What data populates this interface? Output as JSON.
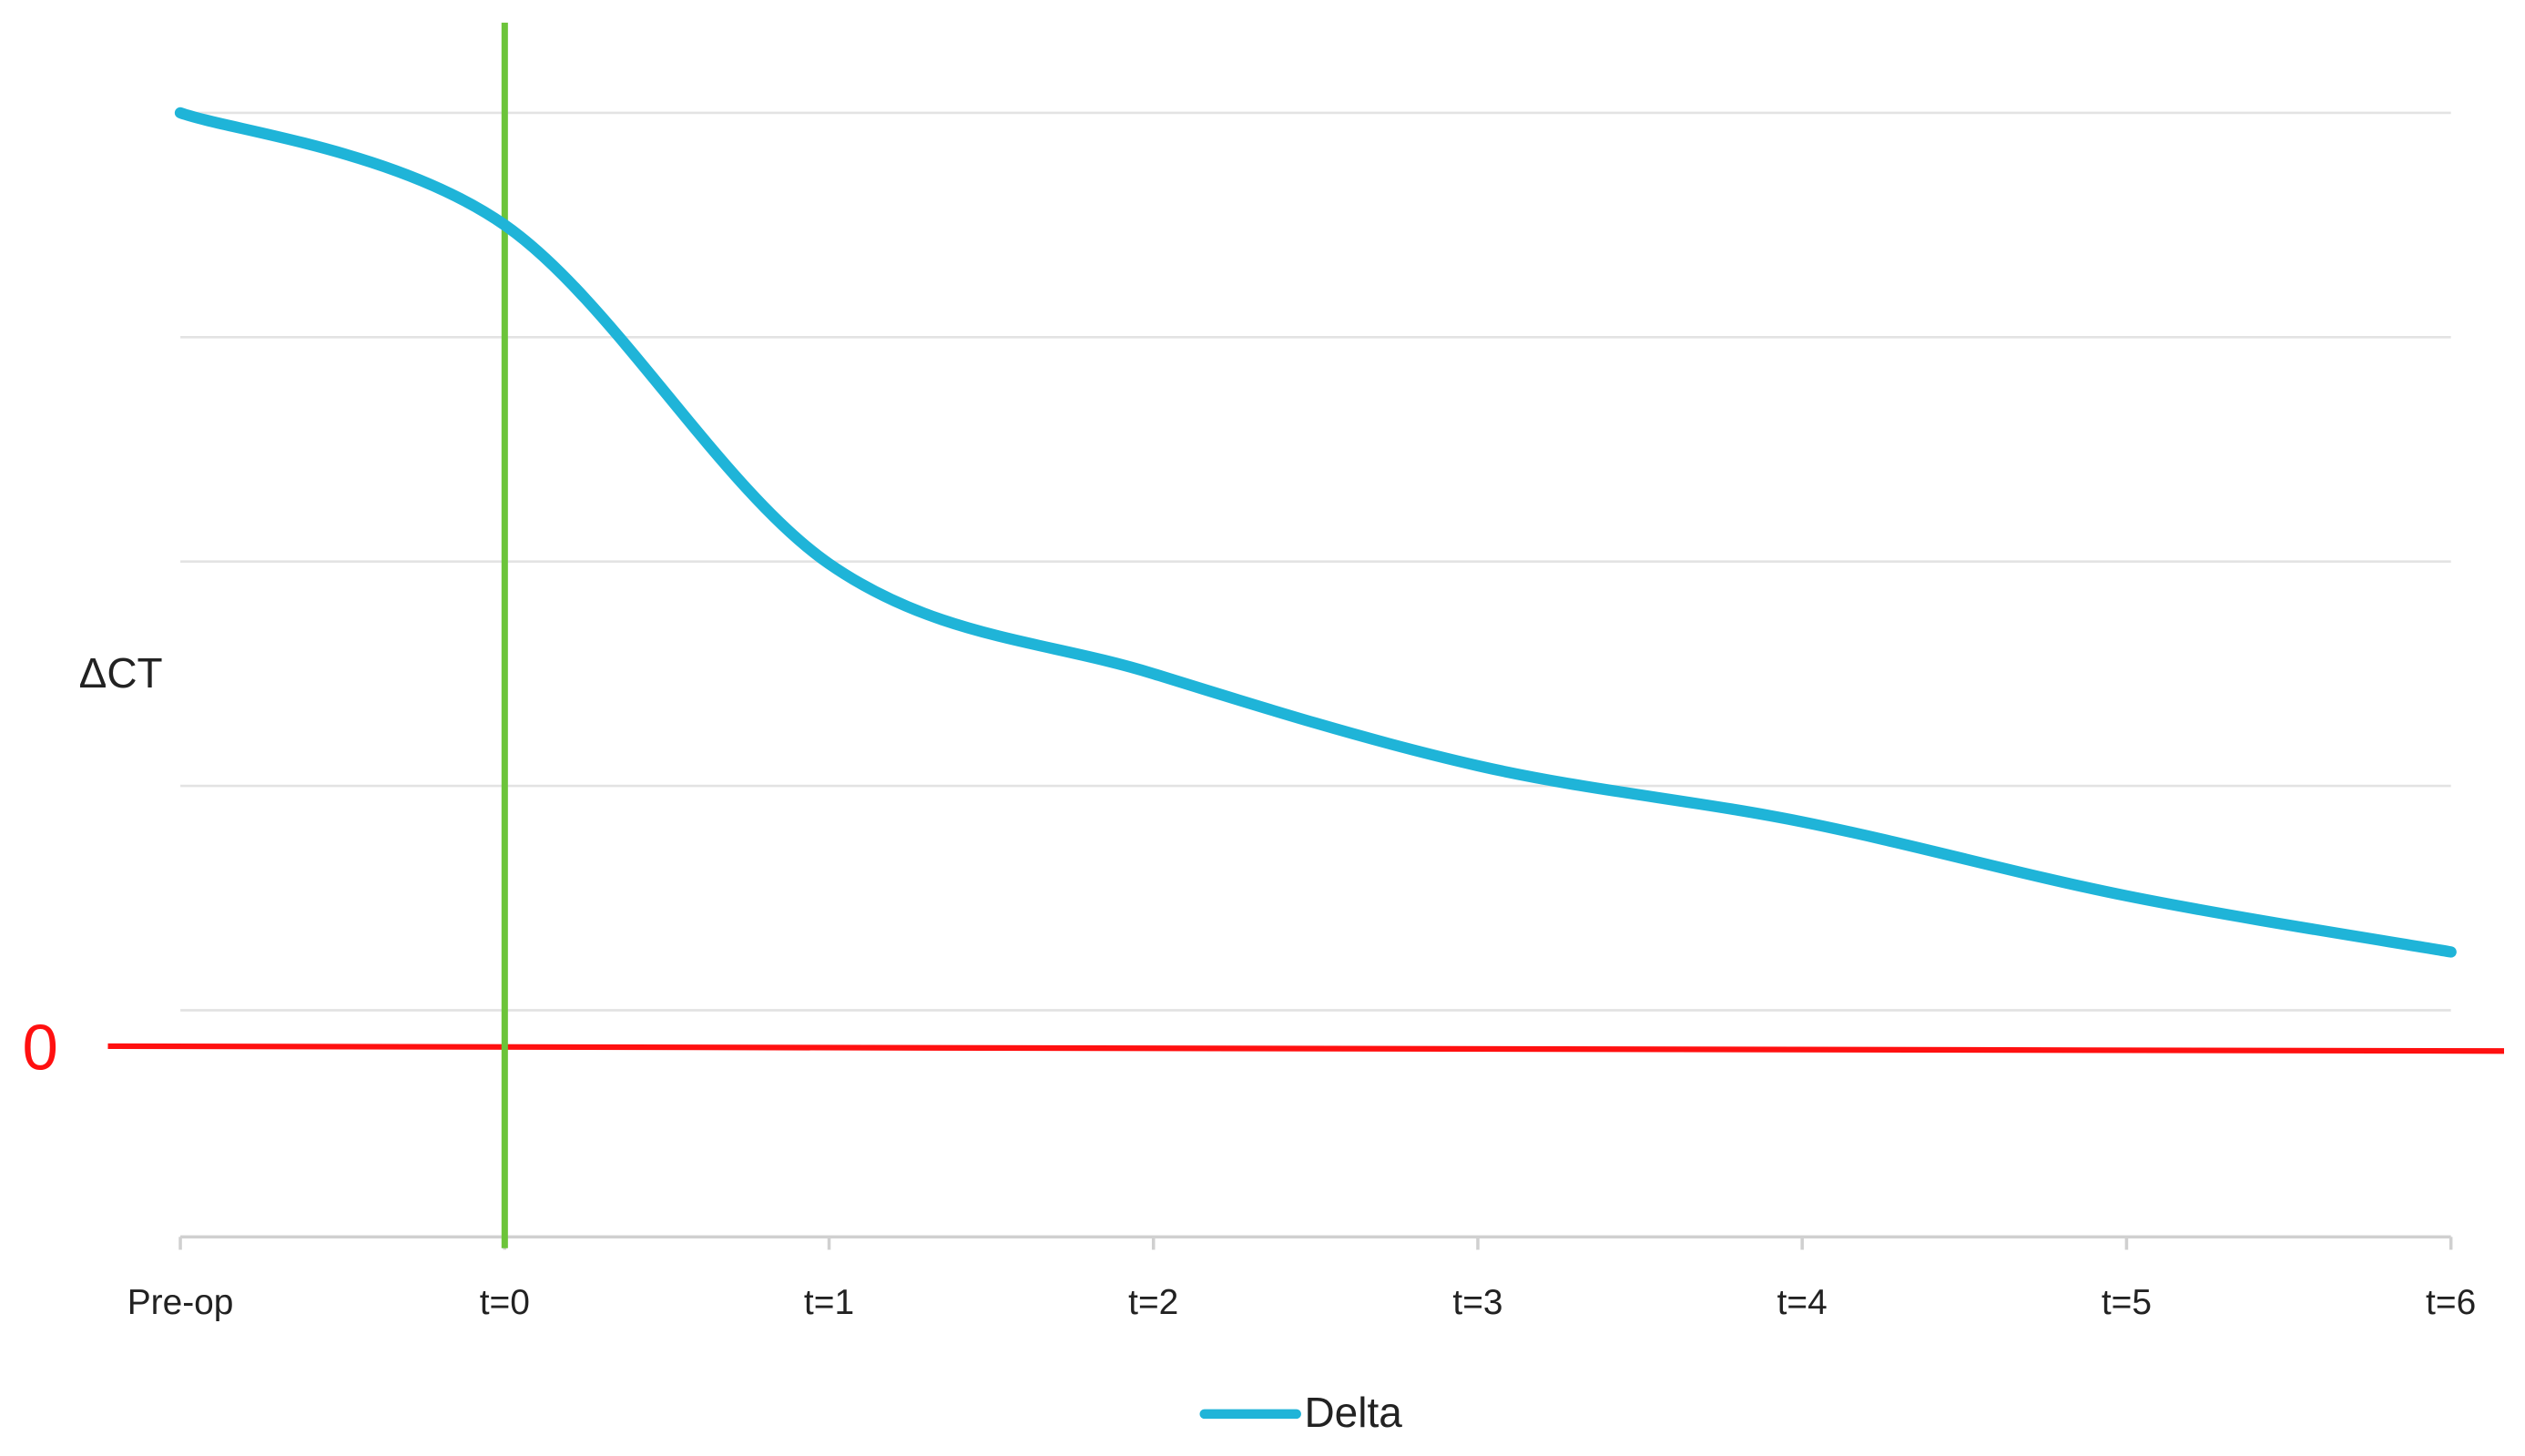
{
  "chart_data": {
    "type": "line",
    "y_label": "ΔCT",
    "categories": [
      "Pre-op",
      "t=0",
      "t=1",
      "t=2",
      "t=3",
      "t=4",
      "t=5",
      "t=6"
    ],
    "series": [
      {
        "name": "Delta",
        "color": "#1fb4d8",
        "values": [
          4.16,
          3.66,
          2.15,
          1.66,
          1.25,
          1.0,
          0.67,
          0.42
        ]
      }
    ],
    "ylim": [
      -0.85,
      4.16
    ],
    "grid_lines": [
      0.16,
      1.16,
      2.16,
      3.16,
      4.16
    ],
    "reference_line": {
      "label": "0",
      "value": 0,
      "color": "#ff1010"
    },
    "vertical_marker": {
      "category_index": 1,
      "color": "#6cc43a"
    },
    "smooth": true,
    "legend": "bottom"
  }
}
